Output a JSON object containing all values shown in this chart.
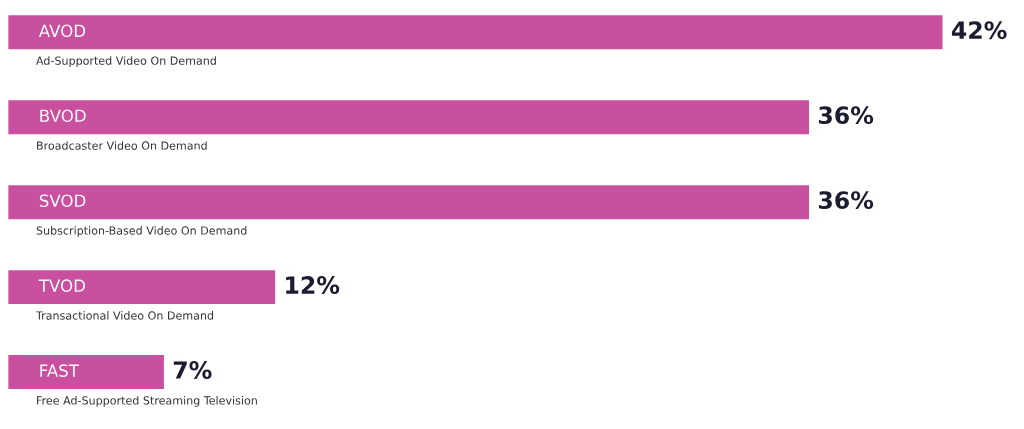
{
  "chart_data": {
    "type": "bar",
    "orientation": "horizontal",
    "categories": [
      "AVOD",
      "BVOD",
      "SVOD",
      "TVOD",
      "FAST"
    ],
    "values": [
      42,
      36,
      36,
      12,
      7
    ],
    "color": "#c8509f",
    "value_labels": [
      "42%",
      "36%",
      "36%",
      "12%",
      "7%"
    ],
    "annotations": [
      "Ad-Supported Video On Demand",
      "Broadcaster Video On Demand",
      "Subscription-Based Video On Demand",
      "Transactional Video On Demand",
      "Free Ad-Supported Streaming Television"
    ]
  }
}
